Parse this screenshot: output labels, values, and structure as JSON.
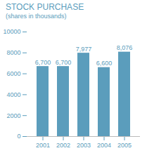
{
  "chart_data": {
    "type": "bar",
    "title": "STOCK PURCHASE",
    "subtitle": "(shares in thousands)",
    "categories": [
      "2001",
      "2002",
      "2003",
      "2004",
      "2005"
    ],
    "values": [
      6700,
      6700,
      7977,
      6600,
      8076
    ],
    "value_labels": [
      "6,700",
      "6,700",
      "7,977",
      "6,600",
      "8,076"
    ],
    "data_labels": true,
    "color": "#5b9dbc",
    "ylim": [
      0,
      10000
    ],
    "yticks": [
      0,
      2000,
      4000,
      6000,
      8000,
      10000
    ],
    "grid": false
  }
}
